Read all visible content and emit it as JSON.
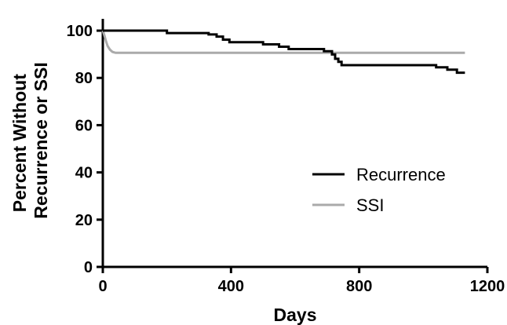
{
  "chart_data": {
    "type": "line",
    "title": "",
    "xlabel": "Days",
    "ylabel": [
      "Percent Without",
      "Recurrence or SSI"
    ],
    "xlim": [
      0,
      1200
    ],
    "ylim": [
      0,
      105
    ],
    "xticks": [
      0,
      400,
      800,
      1200
    ],
    "yticks": [
      0,
      20,
      40,
      60,
      80,
      100
    ],
    "grid": false,
    "legend_position": "right",
    "series": [
      {
        "name": "Recurrence",
        "color": "#000000",
        "step": true,
        "points": [
          [
            0,
            100
          ],
          [
            200,
            100
          ],
          [
            200,
            99
          ],
          [
            330,
            99
          ],
          [
            330,
            98.4
          ],
          [
            355,
            98.4
          ],
          [
            355,
            97.5
          ],
          [
            375,
            97.5
          ],
          [
            375,
            96.2
          ],
          [
            395,
            96.2
          ],
          [
            395,
            95.1
          ],
          [
            500,
            95.1
          ],
          [
            500,
            94.2
          ],
          [
            550,
            94.2
          ],
          [
            550,
            93.2
          ],
          [
            580,
            93.2
          ],
          [
            580,
            92.2
          ],
          [
            690,
            92.2
          ],
          [
            690,
            91.3
          ],
          [
            715,
            91.3
          ],
          [
            715,
            89.9
          ],
          [
            725,
            89.9
          ],
          [
            725,
            88.1
          ],
          [
            735,
            88.1
          ],
          [
            735,
            86.8
          ],
          [
            745,
            86.8
          ],
          [
            745,
            85.4
          ],
          [
            1040,
            85.4
          ],
          [
            1040,
            84.5
          ],
          [
            1075,
            84.5
          ],
          [
            1075,
            83.5
          ],
          [
            1105,
            83.5
          ],
          [
            1105,
            82.2
          ],
          [
            1130,
            82.2
          ]
        ]
      },
      {
        "name": "SSI",
        "color": "#aaaaaa",
        "step": false,
        "points": [
          [
            0,
            100
          ],
          [
            5,
            98
          ],
          [
            10,
            95.5
          ],
          [
            15,
            93.5
          ],
          [
            22,
            92
          ],
          [
            30,
            91
          ],
          [
            40,
            90.6
          ],
          [
            1130,
            90.6
          ]
        ]
      }
    ]
  }
}
